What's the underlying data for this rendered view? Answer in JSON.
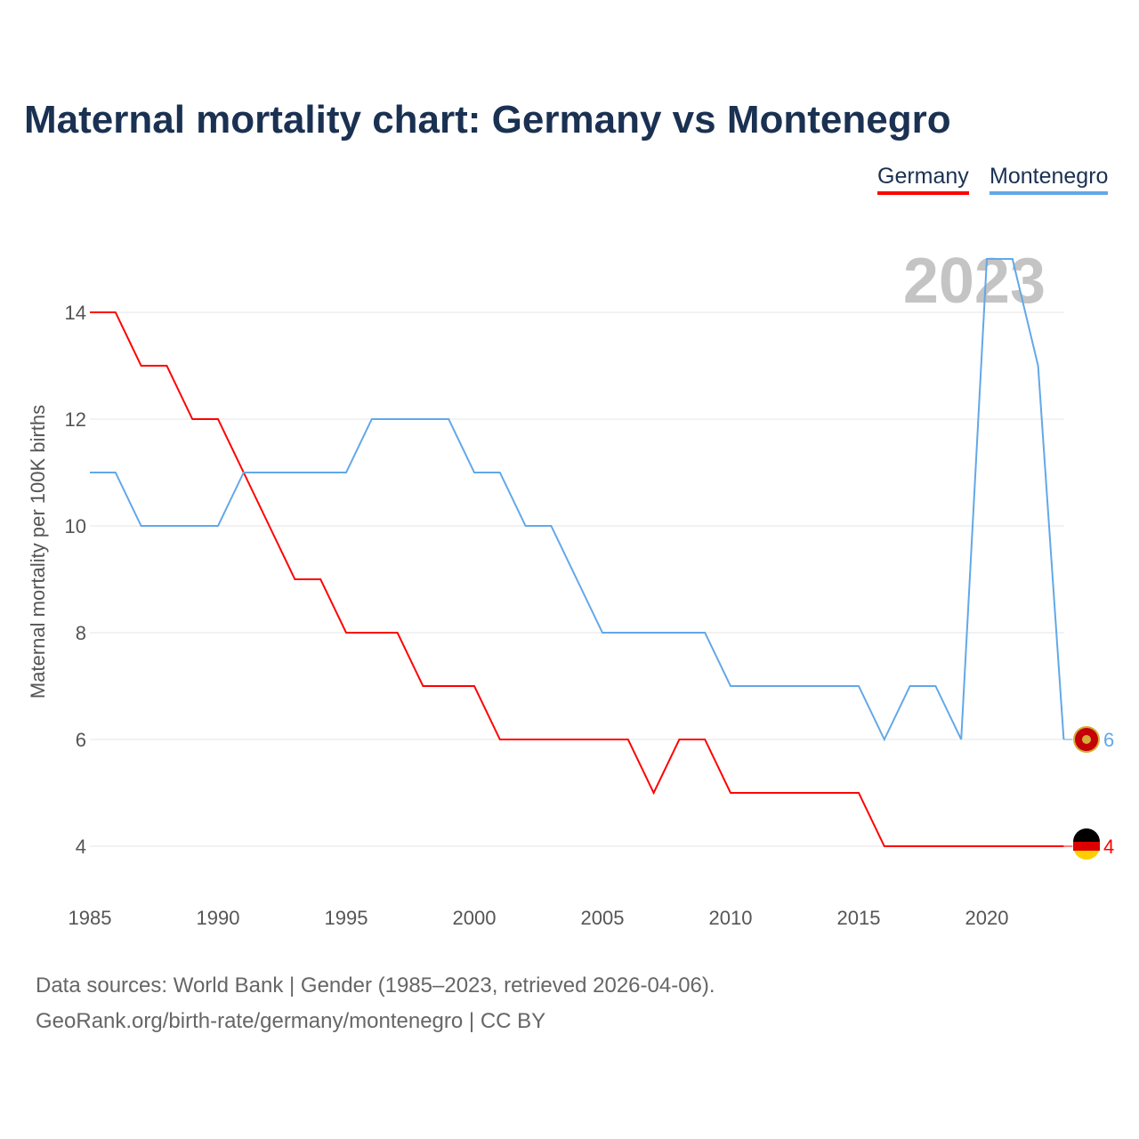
{
  "chart_data": {
    "type": "line",
    "title": "Maternal mortality chart: Germany vs Montenegro",
    "xlabel": "",
    "ylabel": "Maternal mortality per 100K births",
    "year_label": "2023",
    "xlim": [
      1985,
      2023
    ],
    "ylim": [
      3,
      15
    ],
    "x_ticks": [
      1985,
      1990,
      1995,
      2000,
      2005,
      2010,
      2015,
      2020
    ],
    "y_ticks": [
      4,
      6,
      8,
      10,
      12,
      14
    ],
    "grid": true,
    "legend_position": "top-right",
    "x": [
      1985,
      1986,
      1987,
      1988,
      1989,
      1990,
      1991,
      1992,
      1993,
      1994,
      1995,
      1996,
      1997,
      1998,
      1999,
      2000,
      2001,
      2002,
      2003,
      2004,
      2005,
      2006,
      2007,
      2008,
      2009,
      2010,
      2011,
      2012,
      2013,
      2014,
      2015,
      2016,
      2017,
      2018,
      2019,
      2020,
      2021,
      2022,
      2023
    ],
    "series": [
      {
        "name": "Germany",
        "color": "#ff0000",
        "end_label": "4",
        "values": [
          14,
          14,
          13,
          13,
          12,
          12,
          11,
          10,
          9,
          9,
          8,
          8,
          8,
          7,
          7,
          7,
          6,
          6,
          6,
          6,
          6,
          6,
          5,
          6,
          6,
          5,
          5,
          5,
          5,
          5,
          5,
          4,
          4,
          4,
          4,
          4,
          4,
          4,
          4
        ]
      },
      {
        "name": "Montenegro",
        "color": "#62a8e8",
        "end_label": "6",
        "values": [
          11,
          11,
          10,
          10,
          10,
          10,
          11,
          11,
          11,
          11,
          11,
          12,
          12,
          12,
          12,
          11,
          11,
          10,
          10,
          9,
          8,
          8,
          8,
          8,
          8,
          7,
          7,
          7,
          7,
          7,
          7,
          6,
          7,
          7,
          6,
          15,
          15,
          13,
          6
        ]
      }
    ]
  },
  "footer": {
    "source": "Data sources: World Bank | Gender (1985–2023, retrieved 2026-04-06).",
    "credit": "GeoRank.org/birth-rate/germany/montenegro | CC BY"
  }
}
